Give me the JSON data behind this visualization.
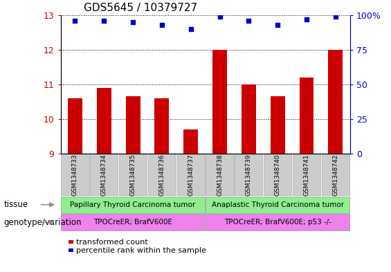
{
  "title": "GDS5645 / 10379727",
  "samples": [
    "GSM1348733",
    "GSM1348734",
    "GSM1348735",
    "GSM1348736",
    "GSM1348737",
    "GSM1348738",
    "GSM1348739",
    "GSM1348740",
    "GSM1348741",
    "GSM1348742"
  ],
  "bar_values": [
    10.6,
    10.9,
    10.65,
    10.6,
    9.7,
    12.0,
    11.0,
    10.65,
    11.2,
    12.0
  ],
  "dot_values": [
    96,
    96,
    95,
    93,
    90,
    99,
    96,
    93,
    97,
    99
  ],
  "ylim_left": [
    9,
    13
  ],
  "ylim_right": [
    0,
    100
  ],
  "yticks_left": [
    9,
    10,
    11,
    12,
    13
  ],
  "yticks_right": [
    0,
    25,
    50,
    75,
    100
  ],
  "ytick_labels_right": [
    "0",
    "25",
    "50",
    "75",
    "100%"
  ],
  "bar_color": "#cc0000",
  "dot_color": "#0000cc",
  "tissue_groups": [
    {
      "label": "Papillary Thyroid Carcinoma tumor",
      "start": 0,
      "end": 5,
      "color": "#90ee90"
    },
    {
      "label": "Anaplastic Thyroid Carcinoma tumor",
      "start": 5,
      "end": 10,
      "color": "#90ee90"
    }
  ],
  "genotype_groups": [
    {
      "label": "TPOCreER; BrafV600E",
      "start": 0,
      "end": 5,
      "color": "#ee82ee"
    },
    {
      "label": "TPOCreER; BrafV600E; p53 -/-",
      "start": 5,
      "end": 10,
      "color": "#ee82ee"
    }
  ],
  "tissue_label": "tissue",
  "genotype_label": "genotype/variation",
  "legend_bar": "transformed count",
  "legend_dot": "percentile rank within the sample",
  "tick_color_left": "#cc0000",
  "tick_color_right": "#0000cc",
  "sample_box_color": "#cccccc",
  "sample_box_edge": "#aaaaaa"
}
